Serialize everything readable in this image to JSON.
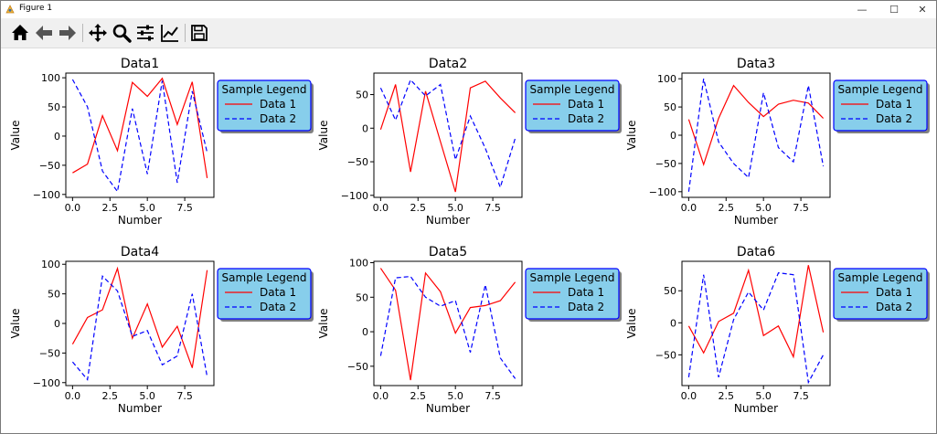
{
  "window": {
    "title": "Figure 1",
    "buttons": {
      "minimize": "—",
      "maximize": "☐",
      "close": "✕"
    }
  },
  "toolbar": {
    "tools": [
      {
        "name": "home-icon",
        "tooltip": "Home"
      },
      {
        "name": "back-icon",
        "tooltip": "Back"
      },
      {
        "name": "forward-icon",
        "tooltip": "Forward"
      },
      {
        "name": "pan-icon",
        "tooltip": "Pan"
      },
      {
        "name": "zoom-icon",
        "tooltip": "Zoom"
      },
      {
        "name": "configure-subplots-icon",
        "tooltip": "Subplots"
      },
      {
        "name": "edit-axis-icon",
        "tooltip": "Customize"
      },
      {
        "name": "save-icon",
        "tooltip": "Save"
      }
    ]
  },
  "style": {
    "series_colors": [
      "#ff0000",
      "#0000ff"
    ],
    "series_dash": [
      "solid",
      "dashed"
    ],
    "legend_face": "#87ceeb",
    "legend_edge": "#0000ff",
    "legend_shadow": "#808080"
  },
  "legend": {
    "title": "Sample Legend",
    "entries": [
      "Data 1",
      "Data 2"
    ],
    "location": "outside-right"
  },
  "chart_data": [
    {
      "type": "line",
      "title": "Data1",
      "xlabel": "Number",
      "ylabel": "Value",
      "x": [
        0,
        1,
        2,
        3,
        4,
        5,
        6,
        7,
        8,
        9
      ],
      "xticks": [
        0.0,
        2.5,
        5.0,
        7.5
      ],
      "xtick_labels": [
        "0.0",
        "2.5",
        "5.0",
        "7.5"
      ],
      "xlim": [
        -0.45,
        9.45
      ],
      "ylim": [
        -105,
        108
      ],
      "yticks": [
        -100,
        -50,
        0,
        50,
        100
      ],
      "ytick_labels": [
        "−100",
        "−50",
        "0",
        "50",
        "100"
      ],
      "series": [
        {
          "name": "Data 1",
          "values": [
            -63,
            -48,
            35,
            -25,
            92,
            68,
            99,
            20,
            93,
            -72
          ]
        },
        {
          "name": "Data 2",
          "values": [
            97,
            50,
            -60,
            -95,
            47,
            -65,
            95,
            -80,
            77,
            -28
          ]
        }
      ]
    },
    {
      "type": "line",
      "title": "Data2",
      "xlabel": "Number",
      "ylabel": "Value",
      "x": [
        0,
        1,
        2,
        3,
        4,
        5,
        6,
        7,
        8,
        9
      ],
      "xticks": [
        0.0,
        2.5,
        5.0,
        7.5
      ],
      "xtick_labels": [
        "0.0",
        "2.5",
        "5.0",
        "7.5"
      ],
      "xlim": [
        -0.45,
        9.45
      ],
      "ylim": [
        -103,
        82
      ],
      "yticks": [
        -100,
        -50,
        0,
        50
      ],
      "ytick_labels": [
        "−100",
        "−50",
        "0",
        "50"
      ],
      "series": [
        {
          "name": "Data 1",
          "values": [
            -2,
            65,
            -65,
            55,
            -20,
            -95,
            60,
            70,
            45,
            23
          ]
        },
        {
          "name": "Data 2",
          "values": [
            60,
            12,
            72,
            48,
            65,
            -47,
            18,
            -30,
            -88,
            -15
          ]
        }
      ]
    },
    {
      "type": "line",
      "title": "Data3",
      "xlabel": "Number",
      "ylabel": "Value",
      "x": [
        0,
        1,
        2,
        3,
        4,
        5,
        6,
        7,
        8,
        9
      ],
      "xticks": [
        0.0,
        2.5,
        5.0,
        7.5
      ],
      "xtick_labels": [
        "0.0",
        "2.5",
        "5.0",
        "7.5"
      ],
      "xlim": [
        -0.45,
        9.45
      ],
      "ylim": [
        -110,
        110
      ],
      "yticks": [
        -100,
        -50,
        0,
        50,
        100
      ],
      "ytick_labels": [
        "−100",
        "−50",
        "0",
        "50",
        "100"
      ],
      "series": [
        {
          "name": "Data 1",
          "values": [
            28,
            -52,
            30,
            88,
            58,
            33,
            55,
            62,
            57,
            30
          ]
        },
        {
          "name": "Data 2",
          "values": [
            -100,
            100,
            -12,
            -50,
            -75,
            75,
            -22,
            -47,
            88,
            -55
          ]
        }
      ]
    },
    {
      "type": "line",
      "title": "Data4",
      "xlabel": "Number",
      "ylabel": "Value",
      "x": [
        0,
        1,
        2,
        3,
        4,
        5,
        6,
        7,
        8,
        9
      ],
      "xticks": [
        0.0,
        2.5,
        5.0,
        7.5
      ],
      "xtick_labels": [
        "0.0",
        "2.5",
        "5.0",
        "7.5"
      ],
      "xlim": [
        -0.45,
        9.45
      ],
      "ylim": [
        -105,
        105
      ],
      "yticks": [
        -100,
        -50,
        0,
        50,
        100
      ],
      "ytick_labels": [
        "−100",
        "−50",
        "0",
        "50",
        "100"
      ],
      "series": [
        {
          "name": "Data 1",
          "values": [
            -35,
            10,
            23,
            93,
            -25,
            33,
            -40,
            -5,
            -75,
            90
          ]
        },
        {
          "name": "Data 2",
          "values": [
            -65,
            -95,
            80,
            55,
            -22,
            -12,
            -70,
            -55,
            50,
            -90
          ]
        }
      ]
    },
    {
      "type": "line",
      "title": "Data5",
      "xlabel": "Number",
      "ylabel": "Value",
      "x": [
        0,
        1,
        2,
        3,
        4,
        5,
        6,
        7,
        8,
        9
      ],
      "xticks": [
        0.0,
        2.5,
        5.0,
        7.5
      ],
      "xtick_labels": [
        "0.0",
        "2.5",
        "5.0",
        "7.5"
      ],
      "xlim": [
        -0.45,
        9.45
      ],
      "ylim": [
        -78,
        102
      ],
      "yticks": [
        -50,
        0,
        50,
        100
      ],
      "ytick_labels": [
        "−50",
        "0",
        "50",
        "100"
      ],
      "series": [
        {
          "name": "Data 1",
          "values": [
            92,
            60,
            -70,
            85,
            58,
            -2,
            35,
            38,
            45,
            72
          ]
        },
        {
          "name": "Data 2",
          "values": [
            -35,
            78,
            80,
            50,
            37,
            45,
            -30,
            68,
            -38,
            -68
          ]
        }
      ]
    },
    {
      "type": "line",
      "title": "Data6",
      "xlabel": "Number",
      "ylabel": "Value",
      "x": [
        0,
        1,
        2,
        3,
        4,
        5,
        6,
        7,
        8,
        9
      ],
      "xticks": [
        0.0,
        2.5,
        5.0,
        7.5
      ],
      "xtick_labels": [
        "0.0",
        "2.5",
        "5.0",
        "7.5"
      ],
      "xlim": [
        -0.45,
        9.45
      ],
      "ylim": [
        -98,
        96
      ],
      "yticks": [
        -50,
        0,
        50
      ],
      "ytick_labels": [
        "−50",
        "0",
        "50"
      ],
      "series": [
        {
          "name": "Data 1",
          "values": [
            -5,
            -47,
            2,
            15,
            82,
            -20,
            -5,
            -53,
            90,
            -15
          ]
        },
        {
          "name": "Data 2",
          "values": [
            -85,
            75,
            -85,
            5,
            48,
            20,
            78,
            75,
            -93,
            -50
          ]
        }
      ]
    }
  ]
}
